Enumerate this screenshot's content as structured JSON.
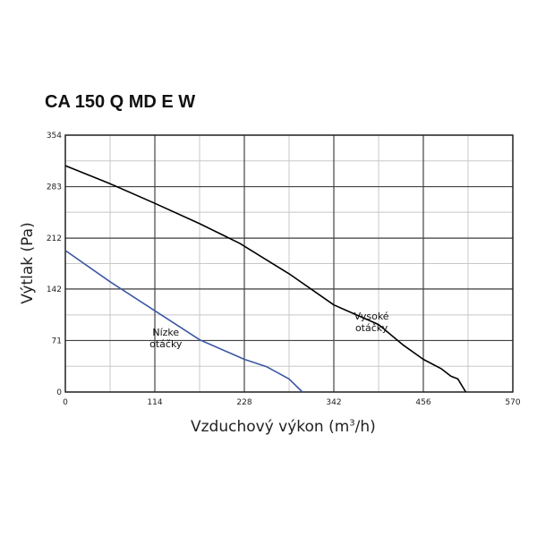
{
  "chart_data": {
    "type": "line",
    "title": "CA 150 Q MD E W",
    "xlabel": "Vzduchový výkon (m",
    "xlabel_sup": "3",
    "xlabel_tail": "/h)",
    "ylabel": "Výtlak (Pa)",
    "xlim": [
      0,
      570
    ],
    "ylim": [
      0,
      354
    ],
    "x_ticks": [
      "0",
      "114",
      "228",
      "342",
      "456",
      "570"
    ],
    "y_ticks": [
      "0",
      "71",
      "142",
      "212",
      "283",
      "354"
    ],
    "x_tick_values": [
      0,
      114,
      228,
      342,
      456,
      570
    ],
    "y_tick_values": [
      0,
      71,
      142,
      212,
      283,
      354
    ],
    "minor_x_step": 57,
    "minor_y_step": 35.4,
    "grid": true,
    "series": [
      {
        "name": "Vysoké otáčky",
        "label_lines": [
          "Vysoké",
          "otáčky"
        ],
        "color": "#000000",
        "x": [
          0,
          57,
          114,
          171,
          222,
          285,
          342,
          399,
          430,
          456,
          479,
          491,
          500,
          510
        ],
        "y": [
          312,
          287,
          260,
          232,
          205,
          163,
          120,
          93,
          65,
          45,
          32,
          22,
          18,
          0
        ]
      },
      {
        "name": "Nízke otáčky",
        "label_lines": [
          "Nízke",
          "otáčky"
        ],
        "color": "#3b57a3",
        "x": [
          0,
          57,
          114,
          171,
          228,
          256,
          285,
          302
        ],
        "y": [
          195,
          152,
          112,
          72,
          45,
          35,
          18,
          0
        ]
      }
    ]
  }
}
